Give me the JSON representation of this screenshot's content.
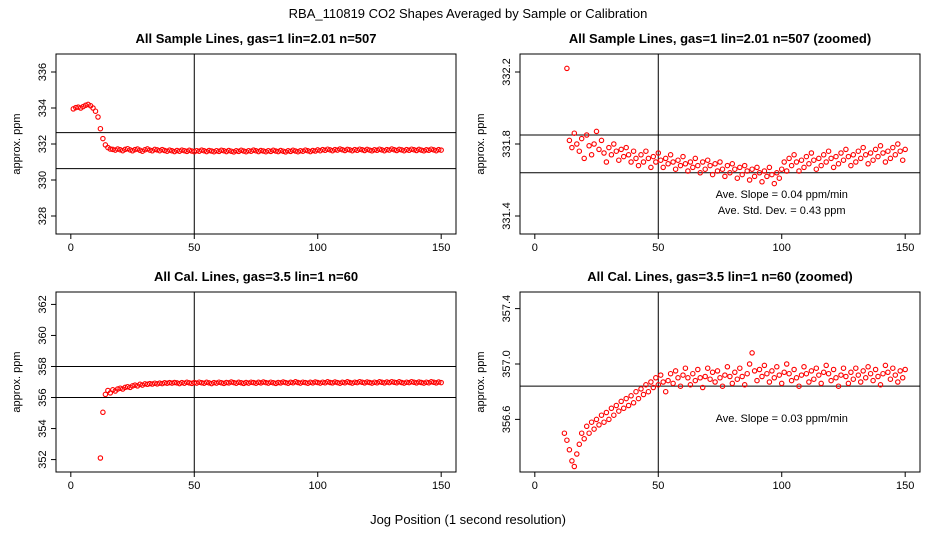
{
  "main_title": "RBA_110819  CO2 Shapes Averaged by Sample or Calibration",
  "xlabel": "Jog Position (1 second resolution)",
  "point_color": "#ff0000",
  "chart_data": [
    {
      "type": "scatter",
      "title": "All Sample Lines, gas=1 lin=2.01 n=507",
      "ylabel": "approx. ppm",
      "xlim": [
        -6,
        156
      ],
      "ylim": [
        327,
        337
      ],
      "xticks": [
        "0",
        "50",
        "100",
        "150"
      ],
      "yticks": [
        "328",
        "330",
        "332",
        "334",
        "336"
      ],
      "vlines": [
        50
      ],
      "hlines": [
        332.63,
        330.63
      ],
      "annotations": [],
      "x": [
        1,
        2,
        3,
        4,
        5,
        6,
        7,
        8,
        9,
        10,
        11,
        12,
        13,
        14,
        15,
        16,
        17,
        18,
        19,
        20,
        21,
        22,
        23,
        24,
        25,
        26,
        27,
        28,
        29,
        30,
        31,
        32,
        33,
        34,
        35,
        36,
        37,
        38,
        39,
        40,
        41,
        42,
        43,
        44,
        45,
        46,
        47,
        48,
        49,
        50,
        51,
        52,
        53,
        54,
        55,
        56,
        57,
        58,
        59,
        60,
        61,
        62,
        63,
        64,
        65,
        66,
        67,
        68,
        69,
        70,
        71,
        72,
        73,
        74,
        75,
        76,
        77,
        78,
        79,
        80,
        81,
        82,
        83,
        84,
        85,
        86,
        87,
        88,
        89,
        90,
        91,
        92,
        93,
        94,
        95,
        96,
        97,
        98,
        99,
        100,
        101,
        102,
        103,
        104,
        105,
        106,
        107,
        108,
        109,
        110,
        111,
        112,
        113,
        114,
        115,
        116,
        117,
        118,
        119,
        120,
        121,
        122,
        123,
        124,
        125,
        126,
        127,
        128,
        129,
        130,
        131,
        132,
        133,
        134,
        135,
        136,
        137,
        138,
        139,
        140,
        141,
        142,
        143,
        144,
        145,
        146,
        147,
        148,
        149,
        150
      ],
      "y": [
        333.95,
        334.02,
        334.05,
        334.0,
        334.08,
        334.15,
        334.2,
        334.12,
        334.0,
        333.82,
        333.5,
        332.85,
        332.3,
        331.95,
        331.8,
        331.72,
        331.7,
        331.66,
        331.72,
        331.68,
        331.63,
        331.7,
        331.74,
        331.67,
        331.62,
        331.69,
        331.72,
        331.65,
        331.6,
        331.68,
        331.73,
        331.66,
        331.62,
        331.7,
        331.67,
        331.63,
        331.69,
        331.64,
        331.6,
        331.66,
        331.62,
        331.58,
        331.64,
        331.6,
        331.66,
        331.63,
        331.59,
        331.65,
        331.61,
        331.57,
        331.63,
        331.6,
        331.66,
        331.62,
        331.58,
        331.64,
        331.61,
        331.57,
        331.63,
        331.59,
        331.65,
        331.62,
        331.58,
        331.64,
        331.6,
        331.56,
        331.62,
        331.59,
        331.65,
        331.61,
        331.57,
        331.63,
        331.6,
        331.66,
        331.62,
        331.58,
        331.64,
        331.61,
        331.57,
        331.63,
        331.59,
        331.65,
        331.61,
        331.58,
        331.64,
        331.6,
        331.56,
        331.62,
        331.59,
        331.65,
        331.61,
        331.57,
        331.63,
        331.6,
        331.66,
        331.62,
        331.58,
        331.64,
        331.61,
        331.67,
        331.63,
        331.69,
        331.65,
        331.71,
        331.67,
        331.63,
        331.69,
        331.66,
        331.72,
        331.68,
        331.64,
        331.7,
        331.67,
        331.63,
        331.69,
        331.65,
        331.71,
        331.68,
        331.64,
        331.7,
        331.66,
        331.62,
        331.68,
        331.65,
        331.71,
        331.67,
        331.63,
        331.69,
        331.66,
        331.72,
        331.68,
        331.64,
        331.7,
        331.67,
        331.63,
        331.69,
        331.65,
        331.71,
        331.68,
        331.64,
        331.7,
        331.66,
        331.62,
        331.68,
        331.65,
        331.71,
        331.67,
        331.63,
        331.69,
        331.66
      ]
    },
    {
      "type": "scatter",
      "title": "All Sample Lines, gas=1 lin=2.01 n=507 (zoomed)",
      "ylabel": "approx. ppm",
      "xlim": [
        -6,
        156
      ],
      "ylim": [
        331.3,
        332.3
      ],
      "xticks": [
        "0",
        "50",
        "100",
        "150"
      ],
      "yticks": [
        "331.4",
        "331.8",
        "332.2"
      ],
      "vlines": [
        50
      ],
      "hlines": [
        331.85,
        331.64
      ],
      "annotations": [
        {
          "text": "Ave. Slope =  0.04  ppm/min",
          "x": 100,
          "y": 331.5
        },
        {
          "text": "Ave. Std. Dev. =  0.43  ppm",
          "x": 100,
          "y": 331.41
        }
      ],
      "x": [
        13,
        14,
        15,
        16,
        17,
        18,
        19,
        20,
        21,
        22,
        23,
        24,
        25,
        26,
        27,
        28,
        29,
        30,
        31,
        32,
        33,
        34,
        35,
        36,
        37,
        38,
        39,
        40,
        41,
        42,
        43,
        44,
        45,
        46,
        47,
        48,
        49,
        50,
        51,
        52,
        53,
        54,
        55,
        56,
        57,
        58,
        59,
        60,
        61,
        62,
        63,
        64,
        65,
        66,
        67,
        68,
        69,
        70,
        71,
        72,
        73,
        74,
        75,
        76,
        77,
        78,
        79,
        80,
        81,
        82,
        83,
        84,
        85,
        86,
        87,
        88,
        89,
        90,
        91,
        92,
        93,
        94,
        95,
        96,
        97,
        98,
        99,
        100,
        101,
        102,
        103,
        104,
        105,
        106,
        107,
        108,
        109,
        110,
        111,
        112,
        113,
        114,
        115,
        116,
        117,
        118,
        119,
        120,
        121,
        122,
        123,
        124,
        125,
        126,
        127,
        128,
        129,
        130,
        131,
        132,
        133,
        134,
        135,
        136,
        137,
        138,
        139,
        140,
        141,
        142,
        143,
        144,
        145,
        146,
        147,
        148,
        149,
        150
      ],
      "y": [
        332.22,
        331.82,
        331.78,
        331.86,
        331.8,
        331.76,
        331.83,
        331.72,
        331.85,
        331.79,
        331.74,
        331.8,
        331.87,
        331.77,
        331.82,
        331.75,
        331.7,
        331.78,
        331.74,
        331.8,
        331.76,
        331.71,
        331.77,
        331.73,
        331.78,
        331.74,
        331.7,
        331.76,
        331.72,
        331.68,
        331.74,
        331.7,
        331.76,
        331.72,
        331.67,
        331.73,
        331.7,
        331.75,
        331.71,
        331.67,
        331.72,
        331.69,
        331.74,
        331.7,
        331.66,
        331.71,
        331.68,
        331.73,
        331.69,
        331.65,
        331.7,
        331.67,
        331.72,
        331.68,
        331.64,
        331.7,
        331.66,
        331.71,
        331.68,
        331.63,
        331.69,
        331.65,
        331.7,
        331.66,
        331.62,
        331.68,
        331.64,
        331.69,
        331.66,
        331.61,
        331.67,
        331.63,
        331.68,
        331.65,
        331.6,
        331.66,
        331.62,
        331.67,
        331.64,
        331.59,
        331.65,
        331.62,
        331.67,
        331.63,
        331.58,
        331.64,
        331.61,
        331.66,
        331.7,
        331.65,
        331.72,
        331.68,
        331.74,
        331.7,
        331.65,
        331.71,
        331.67,
        331.73,
        331.69,
        331.75,
        331.71,
        331.66,
        331.72,
        331.68,
        331.74,
        331.7,
        331.76,
        331.72,
        331.67,
        331.73,
        331.69,
        331.75,
        331.71,
        331.77,
        331.73,
        331.68,
        331.74,
        331.7,
        331.76,
        331.72,
        331.78,
        331.74,
        331.69,
        331.75,
        331.71,
        331.77,
        331.73,
        331.79,
        331.75,
        331.7,
        331.76,
        331.72,
        331.78,
        331.74,
        331.8,
        331.76,
        331.71,
        331.77
      ]
    },
    {
      "type": "scatter",
      "title": "All Cal. Lines, gas=3.5 lin=1 n=60",
      "ylabel": "approx. ppm",
      "xlim": [
        -6,
        156
      ],
      "ylim": [
        351.2,
        362.8
      ],
      "xticks": [
        "0",
        "50",
        "100",
        "150"
      ],
      "yticks": [
        "352",
        "354",
        "356",
        "358",
        "360",
        "362"
      ],
      "vlines": [
        50
      ],
      "hlines": [
        358.0,
        356.0
      ],
      "annotations": [],
      "x": [
        12,
        13,
        14,
        15,
        16,
        17,
        18,
        19,
        20,
        21,
        22,
        23,
        24,
        25,
        26,
        27,
        28,
        29,
        30,
        31,
        32,
        33,
        34,
        35,
        36,
        37,
        38,
        39,
        40,
        41,
        42,
        43,
        44,
        45,
        46,
        47,
        48,
        49,
        50,
        51,
        52,
        53,
        54,
        55,
        56,
        57,
        58,
        59,
        60,
        61,
        62,
        63,
        64,
        65,
        66,
        67,
        68,
        69,
        70,
        71,
        72,
        73,
        74,
        75,
        76,
        77,
        78,
        79,
        80,
        81,
        82,
        83,
        84,
        85,
        86,
        87,
        88,
        89,
        90,
        91,
        92,
        93,
        94,
        95,
        96,
        97,
        98,
        99,
        100,
        101,
        102,
        103,
        104,
        105,
        106,
        107,
        108,
        109,
        110,
        111,
        112,
        113,
        114,
        115,
        116,
        117,
        118,
        119,
        120,
        121,
        122,
        123,
        124,
        125,
        126,
        127,
        128,
        129,
        130,
        131,
        132,
        133,
        134,
        135,
        136,
        137,
        138,
        139,
        140,
        141,
        142,
        143,
        144,
        145,
        146,
        147,
        148,
        149,
        150
      ],
      "y": [
        352.1,
        355.05,
        356.2,
        356.45,
        356.3,
        356.5,
        356.42,
        356.55,
        356.6,
        356.55,
        356.65,
        356.7,
        356.65,
        356.75,
        356.8,
        356.75,
        356.85,
        356.8,
        356.88,
        356.85,
        356.9,
        356.87,
        356.92,
        356.88,
        356.93,
        356.9,
        356.95,
        356.92,
        356.96,
        356.93,
        356.97,
        356.94,
        356.9,
        356.96,
        356.92,
        356.98,
        356.94,
        356.91,
        356.97,
        356.93,
        356.99,
        356.95,
        356.92,
        356.98,
        356.94,
        356.9,
        356.96,
        356.93,
        356.99,
        356.95,
        356.91,
        356.97,
        356.94,
        357.0,
        356.96,
        356.92,
        356.98,
        356.95,
        356.91,
        356.97,
        356.93,
        356.99,
        356.96,
        356.92,
        356.98,
        356.94,
        357.0,
        356.96,
        356.93,
        356.99,
        356.95,
        356.91,
        356.97,
        356.94,
        357.0,
        356.96,
        356.92,
        356.98,
        356.95,
        357.01,
        356.97,
        356.93,
        356.99,
        356.96,
        356.92,
        356.98,
        356.94,
        357.0,
        356.97,
        356.93,
        356.99,
        356.95,
        357.01,
        356.97,
        356.94,
        357.0,
        356.96,
        356.92,
        356.98,
        356.95,
        357.01,
        356.97,
        356.93,
        356.99,
        356.96,
        357.02,
        356.98,
        356.94,
        357.0,
        356.97,
        356.93,
        356.99,
        356.95,
        357.01,
        356.98,
        356.94,
        357.0,
        356.96,
        357.02,
        356.98,
        356.95,
        357.01,
        356.97,
        356.93,
        356.99,
        356.96,
        357.02,
        356.98,
        356.94,
        357.0,
        356.97,
        356.93,
        356.99,
        356.95,
        357.01,
        356.98,
        356.94,
        357.0,
        356.96
      ]
    },
    {
      "type": "scatter",
      "title": "All Cal. Lines, gas=3.5 lin=1 n=60 (zoomed)",
      "ylabel": "approx. ppm",
      "xlim": [
        -6,
        156
      ],
      "ylim": [
        356.22,
        357.52
      ],
      "xticks": [
        "0",
        "50",
        "100",
        "150"
      ],
      "yticks": [
        "356.6",
        "357.0",
        "357.4"
      ],
      "vlines": [
        50
      ],
      "hlines": [
        356.84
      ],
      "annotations": [
        {
          "text": "Ave. Slope =  0.03  ppm/min",
          "x": 100,
          "y": 356.58
        }
      ],
      "x": [
        12,
        13,
        14,
        15,
        16,
        17,
        18,
        19,
        20,
        21,
        22,
        23,
        24,
        25,
        26,
        27,
        28,
        29,
        30,
        31,
        32,
        33,
        34,
        35,
        36,
        37,
        38,
        39,
        40,
        41,
        42,
        43,
        44,
        45,
        46,
        47,
        48,
        49,
        50,
        51,
        52,
        53,
        54,
        55,
        56,
        57,
        58,
        59,
        60,
        61,
        62,
        63,
        64,
        65,
        66,
        67,
        68,
        69,
        70,
        71,
        72,
        73,
        74,
        75,
        76,
        77,
        78,
        79,
        80,
        81,
        82,
        83,
        84,
        85,
        86,
        87,
        88,
        89,
        90,
        91,
        92,
        93,
        94,
        95,
        96,
        97,
        98,
        99,
        100,
        101,
        102,
        103,
        104,
        105,
        106,
        107,
        108,
        109,
        110,
        111,
        112,
        113,
        114,
        115,
        116,
        117,
        118,
        119,
        120,
        121,
        122,
        123,
        124,
        125,
        126,
        127,
        128,
        129,
        130,
        131,
        132,
        133,
        134,
        135,
        136,
        137,
        138,
        139,
        140,
        141,
        142,
        143,
        144,
        145,
        146,
        147,
        148,
        149,
        150
      ],
      "y": [
        356.5,
        356.45,
        356.38,
        356.3,
        356.26,
        356.35,
        356.42,
        356.5,
        356.46,
        356.55,
        356.5,
        356.58,
        356.53,
        356.6,
        356.56,
        356.63,
        356.58,
        356.65,
        356.6,
        356.68,
        356.63,
        356.7,
        356.66,
        356.73,
        356.68,
        356.75,
        356.7,
        356.77,
        356.72,
        356.8,
        356.75,
        356.82,
        356.78,
        356.85,
        356.8,
        356.87,
        356.83,
        356.9,
        356.85,
        356.92,
        356.87,
        356.8,
        356.88,
        356.93,
        356.86,
        356.95,
        356.9,
        356.84,
        356.92,
        356.97,
        356.9,
        356.85,
        356.93,
        356.88,
        356.96,
        356.9,
        356.83,
        356.91,
        356.97,
        356.89,
        356.94,
        356.87,
        356.95,
        356.9,
        356.84,
        356.92,
        356.98,
        356.91,
        356.86,
        356.94,
        356.89,
        356.97,
        356.91,
        356.85,
        356.93,
        357.0,
        357.08,
        356.95,
        356.88,
        356.96,
        356.91,
        356.99,
        356.93,
        356.87,
        356.95,
        356.9,
        356.98,
        356.92,
        356.86,
        356.94,
        357.0,
        356.93,
        356.88,
        356.96,
        356.9,
        356.84,
        356.92,
        356.98,
        356.93,
        356.87,
        356.95,
        356.89,
        356.97,
        356.92,
        356.86,
        356.94,
        356.99,
        356.93,
        356.88,
        356.96,
        356.9,
        356.84,
        356.92,
        356.97,
        356.91,
        356.86,
        356.94,
        356.89,
        356.97,
        356.92,
        356.87,
        356.95,
        356.9,
        356.98,
        356.93,
        356.88,
        356.96,
        356.91,
        356.85,
        356.93,
        356.99,
        356.94,
        356.89,
        356.97,
        356.92,
        356.87,
        356.95,
        356.9,
        356.96
      ]
    }
  ]
}
